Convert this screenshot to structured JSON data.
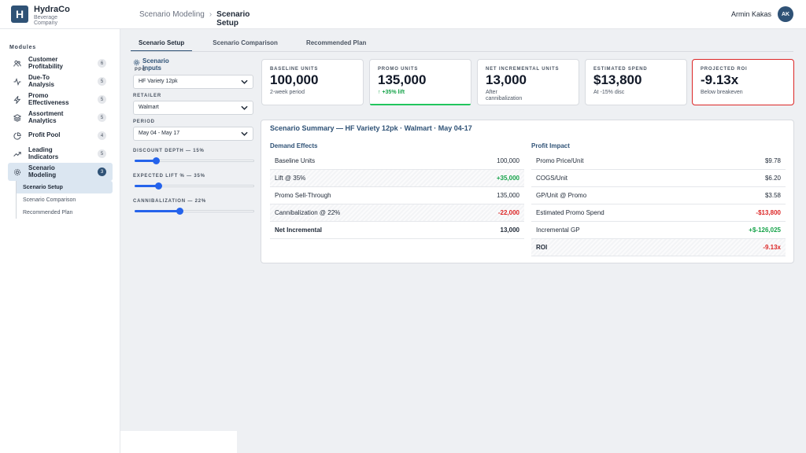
{
  "brand": {
    "initial": "H",
    "name": "HydraCo",
    "sub": "Beverage Company"
  },
  "breadcrumb": {
    "parent": "Scenario Modeling",
    "separator": "›",
    "current": "Scenario Setup"
  },
  "user": {
    "name": "Armin Kakas",
    "initials": "AK"
  },
  "sidebar": {
    "section_label": "Modules",
    "items": [
      {
        "label": "Customer Profitability",
        "badge": "6",
        "icon": "users-icon"
      },
      {
        "label": "Due-To Analysis",
        "badge": "5",
        "icon": "activity-icon"
      },
      {
        "label": "Promo Effectiveness",
        "badge": "5",
        "icon": "zap-icon"
      },
      {
        "label": "Assortment Analytics",
        "badge": "5",
        "icon": "layers-icon"
      },
      {
        "label": "Profit Pool",
        "badge": "4",
        "icon": "pie-icon"
      },
      {
        "label": "Leading Indicators",
        "badge": "5",
        "icon": "trending-icon"
      },
      {
        "label": "Scenario Modeling",
        "badge": "3",
        "icon": "gear-icon"
      }
    ],
    "subitems": [
      "Scenario Setup",
      "Scenario Comparison",
      "Recommended Plan"
    ]
  },
  "tabs": [
    "Scenario Setup",
    "Scenario Comparison",
    "Recommended Plan"
  ],
  "inputs": {
    "title": "Scenario Inputs",
    "ppg_label": "PPG",
    "ppg_value": "HF Variety 12pk",
    "retailer_label": "RETAILER",
    "retailer_value": "Walmart",
    "period_label": "PERIOD",
    "period_value": "May 04 - May 17",
    "discount_label": "DISCOUNT DEPTH — 15%",
    "discount_level": 0.18,
    "lift_label": "EXPECTED LIFT % — 35%",
    "lift_level": 0.2,
    "cannib_label": "CANNIBALIZATION — 22%",
    "cannib_level": 0.38
  },
  "kpis": {
    "baseline": {
      "label": "BASELINE UNITS",
      "value": "100,000",
      "sub": "2-week period"
    },
    "promo": {
      "label": "PROMO UNITS",
      "value": "135,000",
      "sub": "↑ +35% lift"
    },
    "incremental": {
      "label": "NET INCREMENTAL UNITS",
      "value": "13,000",
      "sub": "After cannibalization"
    },
    "spend": {
      "label": "ESTIMATED SPEND",
      "value": "$13,800",
      "sub": "At -15% disc"
    },
    "roi": {
      "label": "PROJECTED ROI",
      "value": "-9.13x",
      "sub": "Below breakeven"
    }
  },
  "summary": {
    "title": "Scenario Summary — HF Variety 12pk · Walmart · May 04-17",
    "demand_title": "Demand Effects",
    "demand_rows": [
      {
        "label": "Baseline Units",
        "value": "100,000"
      },
      {
        "label": "Lift @ 35%",
        "value": "+35,000"
      },
      {
        "label": "Promo Sell-Through",
        "value": "135,000"
      },
      {
        "label": "Cannibalization @ 22%",
        "value": "-22,000"
      },
      {
        "label": "Net Incremental",
        "value": "13,000"
      }
    ],
    "profit_title": "Profit Impact",
    "profit_rows": [
      {
        "label": "Promo Price/Unit",
        "value": "$9.78"
      },
      {
        "label": "COGS/Unit",
        "value": "$6.20"
      },
      {
        "label": "GP/Unit @ Promo",
        "value": "$3.58"
      },
      {
        "label": "Estimated Promo Spend",
        "value": "-$13,800"
      },
      {
        "label": "Incremental GP",
        "value": "+$-126,025"
      },
      {
        "label": "ROI",
        "value": "-9.13x"
      }
    ]
  },
  "colors": {
    "accent": "#2f5276",
    "positive": "#16a34a",
    "negative": "#dc2626",
    "slider": "#2563eb"
  }
}
